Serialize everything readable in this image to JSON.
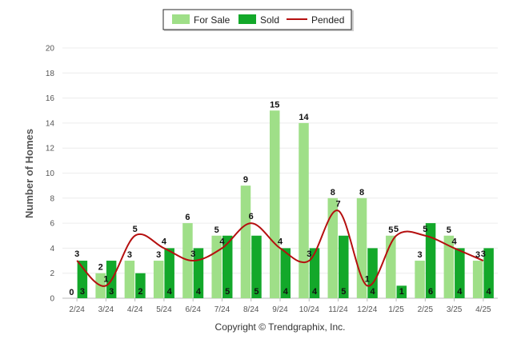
{
  "chart_data": {
    "type": "bar",
    "categories": [
      "2/24",
      "3/24",
      "4/24",
      "5/24",
      "6/24",
      "7/24",
      "8/24",
      "9/24",
      "10/24",
      "11/24",
      "12/24",
      "1/25",
      "2/25",
      "3/25",
      "4/25"
    ],
    "series": [
      {
        "name": "For Sale",
        "type": "bar",
        "color": "#9fdf88",
        "values": [
          0,
          2,
          3,
          3,
          6,
          5,
          9,
          15,
          14,
          8,
          8,
          5,
          3,
          5,
          3
        ]
      },
      {
        "name": "Sold",
        "type": "bar",
        "color": "#13a82a",
        "values": [
          3,
          3,
          2,
          4,
          4,
          5,
          5,
          4,
          4,
          5,
          4,
          1,
          6,
          4,
          4
        ]
      },
      {
        "name": "Pended",
        "type": "line",
        "color": "#b50f0f",
        "values": [
          3,
          1,
          5,
          4,
          3,
          4,
          6,
          4,
          3,
          7,
          1,
          5,
          5,
          4,
          3
        ]
      }
    ],
    "ylabel": "Number of Homes",
    "xlabel": "",
    "ylim": [
      0,
      20
    ],
    "yticks": [
      0,
      2,
      4,
      6,
      8,
      10,
      12,
      14,
      16,
      18,
      20
    ],
    "grid": true,
    "legend_position": "top-center"
  },
  "credit": "Copyright © Trendgraphix, Inc."
}
